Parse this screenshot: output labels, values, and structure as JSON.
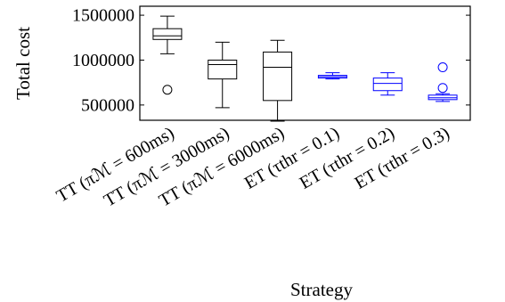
{
  "chart_data": {
    "type": "box",
    "title": "",
    "xlabel": "Strategy",
    "ylabel": "Total cost",
    "ylim": [
      330000,
      1600000
    ],
    "yticks": [
      {
        "value": 500000,
        "label": "500000"
      },
      {
        "value": 1000000,
        "label": "1000000"
      },
      {
        "value": 1500000,
        "label": "1500000"
      }
    ],
    "grid": false,
    "legend": "none",
    "categories": [
      "TT (πℳ = 600ms)",
      "TT (πℳ = 3000ms)",
      "TT (πℳ = 6000ms)",
      "ET (τthr = 0.1)",
      "ET (τthr = 0.2)",
      "ET (τthr = 0.3)"
    ],
    "boxes": [
      {
        "whisker_low": 1070000,
        "q1": 1230000,
        "median": 1270000,
        "q3": 1350000,
        "whisker_high": 1490000,
        "outliers": [
          670000
        ],
        "color": "#000000"
      },
      {
        "whisker_low": 470000,
        "q1": 790000,
        "median": 950000,
        "q3": 1000000,
        "whisker_high": 1200000,
        "outliers": [],
        "color": "#000000"
      },
      {
        "whisker_low": 320000,
        "q1": 550000,
        "median": 920000,
        "q3": 1090000,
        "whisker_high": 1220000,
        "outliers": [],
        "color": "#000000"
      },
      {
        "whisker_low": 790000,
        "q1": 800000,
        "median": 815000,
        "q3": 830000,
        "whisker_high": 860000,
        "outliers": [],
        "color": "#0000ff"
      },
      {
        "whisker_low": 610000,
        "q1": 660000,
        "median": 740000,
        "q3": 800000,
        "whisker_high": 860000,
        "outliers": [],
        "color": "#0000ff"
      },
      {
        "whisker_low": 540000,
        "q1": 560000,
        "median": 580000,
        "q3": 610000,
        "whisker_high": 625000,
        "outliers": [
          690000,
          920000
        ],
        "color": "#0000ff"
      }
    ]
  }
}
